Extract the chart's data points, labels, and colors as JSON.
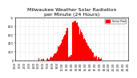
{
  "title": "Milwaukee Weather Solar Radiation per Minute (24 Hours)",
  "title_fontsize": 4.5,
  "background_color": "#ffffff",
  "bar_color": "#ff0000",
  "legend_color": "#ff0000",
  "legend_label": "Solar Rad",
  "ylabel": "",
  "xlabel": "",
  "ylim": [
    0,
    1000
  ],
  "xlim": [
    0,
    1440
  ],
  "grid_color": "#cccccc",
  "grid_style": "dotted",
  "tick_fontsize": 2.5,
  "n_points": 1440,
  "x_tick_positions": [
    0,
    60,
    120,
    180,
    240,
    300,
    360,
    420,
    480,
    540,
    600,
    660,
    720,
    780,
    840,
    900,
    960,
    1020,
    1080,
    1140,
    1200,
    1260,
    1320,
    1380,
    1440
  ],
  "x_tick_labels": [
    "0:00",
    "1:00",
    "2:00",
    "3:00",
    "4:00",
    "5:00",
    "6:00",
    "7:00",
    "8:00",
    "9:00",
    "10:00",
    "11:00",
    "12:00",
    "13:00",
    "14:00",
    "15:00",
    "16:00",
    "17:00",
    "18:00",
    "19:00",
    "20:00",
    "21:00",
    "22:00",
    "23:00",
    "24:00"
  ],
  "y_tick_positions": [
    0,
    200,
    400,
    600,
    800,
    1000
  ],
  "y_tick_labels": [
    "0",
    "200",
    "400",
    "600",
    "800",
    "1k"
  ]
}
